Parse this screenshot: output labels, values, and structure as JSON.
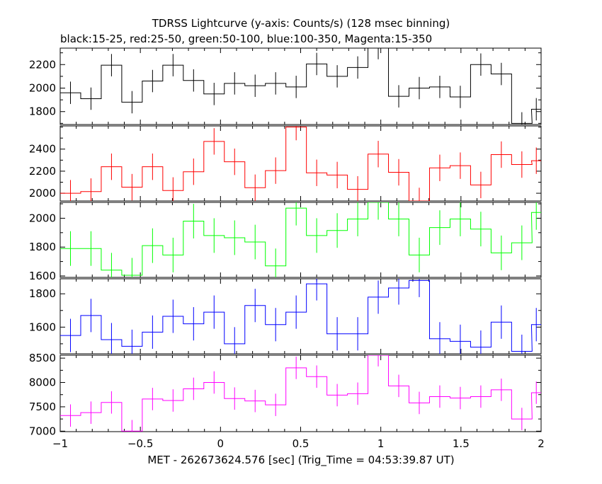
{
  "title": "TDRSS Lightcurve (y-axis: Counts/s) (128 msec binning)",
  "subtitle": "black:15-25, red:25-50, green:50-100, blue:100-350, Magenta:15-350",
  "xlabel": "MET - 262673624.576 [sec] (Trig_Time = 04:53:39.87 UT)",
  "chart_data": {
    "type": "line",
    "title": "TDRSS Lightcurve (y-axis: Counts/s) (128 msec binning)",
    "subtitle": "black:15-25, red:25-50, green:50-100, blue:100-350, Magenta:15-350",
    "xlabel": "MET - 262673624.576 [sec] (Trig_Time = 04:53:39.87 UT)",
    "xlim": [
      -1,
      2
    ],
    "x_ticks": [
      -1,
      -0.5,
      0,
      0.5,
      1,
      1.5,
      2
    ],
    "x_tick_labels": [
      "−1",
      "−0.5",
      "0",
      "0.5",
      "1",
      "1.5",
      "2"
    ],
    "bin_width": 0.128,
    "x": [
      -0.936,
      -0.808,
      -0.68,
      -0.552,
      -0.424,
      -0.296,
      -0.168,
      -0.04,
      0.088,
      0.216,
      0.344,
      0.472,
      0.6,
      0.728,
      0.856,
      0.984,
      1.112,
      1.24,
      1.368,
      1.496,
      1.624,
      1.752,
      1.88
    ],
    "panels": [
      {
        "name": "black:15-25",
        "color": "#000000",
        "ylim": [
          1690,
          2340
        ],
        "yticks": [
          1800,
          2000,
          2200
        ],
        "ytick_labels": [
          "1800",
          "2000",
          "2200"
        ],
        "values": [
          1960,
          1910,
          2195,
          1880,
          2060,
          2195,
          2065,
          1950,
          2040,
          2020,
          2040,
          2010,
          2205,
          2100,
          2175,
          2340,
          1930,
          2000,
          2010,
          1925,
          2200,
          2120,
          1700
        ],
        "last_bin": {
          "x_start": 1.94,
          "value": 1820
        },
        "error": 95
      },
      {
        "name": "red:25-50",
        "color": "#ff0000",
        "ylim": [
          1930,
          2610
        ],
        "yticks": [
          2000,
          2200,
          2400
        ],
        "ytick_labels": [
          "2000",
          "2200",
          "2400"
        ],
        "values": [
          2000,
          2015,
          2240,
          2055,
          2240,
          2025,
          2195,
          2470,
          2285,
          2050,
          2205,
          2600,
          2185,
          2165,
          2035,
          2355,
          2190,
          1930,
          2230,
          2250,
          2075,
          2350,
          2260
        ],
        "last_bin": {
          "x_start": 1.94,
          "value": 2295
        },
        "error": 120
      },
      {
        "name": "green:50-100",
        "color": "#00ff00",
        "ylim": [
          1590,
          2110
        ],
        "yticks": [
          1600,
          1800,
          2000
        ],
        "ytick_labels": [
          "1600",
          "1800",
          "2000"
        ],
        "values": [
          1790,
          1790,
          1640,
          1605,
          1810,
          1745,
          1980,
          1880,
          1865,
          1835,
          1670,
          2070,
          1880,
          1915,
          1995,
          2110,
          1995,
          1745,
          1935,
          1995,
          1925,
          1760,
          1830
        ],
        "last_bin": {
          "x_start": 1.94,
          "value": 2040
        },
        "error": 120
      },
      {
        "name": "blue:100-350",
        "color": "#0000ff",
        "ylim": [
          1440,
          1890
        ],
        "yticks": [
          1600,
          1800
        ],
        "ytick_labels": [
          "1600",
          "1800"
        ],
        "values": [
          1550,
          1670,
          1525,
          1485,
          1570,
          1665,
          1620,
          1690,
          1500,
          1730,
          1615,
          1690,
          1860,
          1560,
          1560,
          1780,
          1835,
          1880,
          1530,
          1515,
          1480,
          1630,
          1455
        ],
        "last_bin": {
          "x_start": 1.94,
          "value": 1615
        },
        "error": 100
      },
      {
        "name": "Magenta:15-350",
        "color": "#ff00ff",
        "ylim": [
          6990,
          8560
        ],
        "yticks": [
          7000,
          7500,
          8000,
          8500
        ],
        "ytick_labels": [
          "7000",
          "7500",
          "8000",
          "8500"
        ],
        "values": [
          7320,
          7380,
          7590,
          7000,
          7660,
          7630,
          7870,
          8000,
          7670,
          7620,
          7540,
          8300,
          8120,
          7740,
          7770,
          8560,
          7930,
          7580,
          7710,
          7680,
          7710,
          7850,
          7250
        ],
        "last_bin": {
          "x_start": 1.94,
          "value": 7790
        },
        "error": 230
      }
    ]
  }
}
